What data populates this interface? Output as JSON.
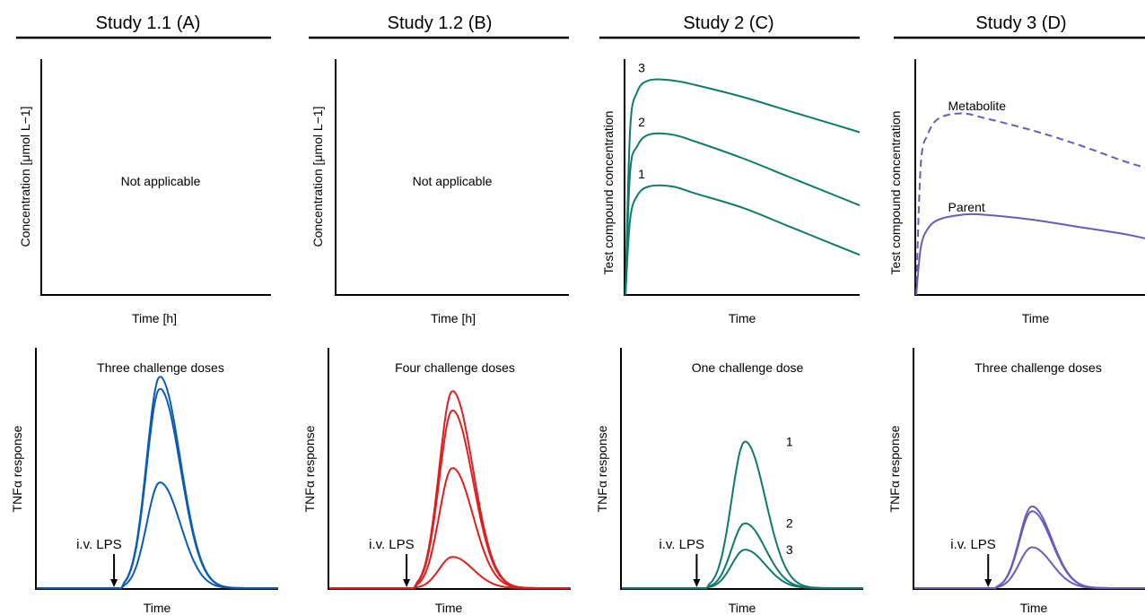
{
  "colors": {
    "study_a": "#0b5cb0",
    "study_b": "#de1f1f",
    "study_c": "#0f7a6a",
    "study_d": "#6b5bb8",
    "axis": "#000000"
  },
  "studies": [
    {
      "title": "Study 1.1 (A)"
    },
    {
      "title": "Study 1.2 (B)"
    },
    {
      "title": "Study 2 (C)"
    },
    {
      "title": "Study 3 (D)"
    }
  ],
  "chart_data": [
    {
      "type": "line",
      "panel": "A-top",
      "title": "Study 1.1 (A)",
      "xlabel": "Time [h]",
      "ylabel": "Concentration [μmol L−1]",
      "annotation": "Not applicable",
      "series": []
    },
    {
      "type": "line",
      "panel": "B-top",
      "title": "Study 1.2 (B)",
      "xlabel": "Time [h]",
      "ylabel": "Concentration [μmol L−1]",
      "annotation": "Not applicable",
      "series": []
    },
    {
      "type": "line",
      "panel": "C-top",
      "title": "Study 2 (C)",
      "xlabel": "Time",
      "ylabel": "Test compound concentration",
      "xlim": [
        0,
        1
      ],
      "ylim": [
        0,
        1
      ],
      "series": [
        {
          "name": "3",
          "x": [
            0,
            0.02,
            0.05,
            0.1,
            0.2,
            0.3,
            0.5,
            0.7,
            0.9,
            1.0
          ],
          "y": [
            0,
            0.7,
            0.86,
            0.91,
            0.91,
            0.89,
            0.84,
            0.78,
            0.72,
            0.69
          ]
        },
        {
          "name": "2",
          "x": [
            0,
            0.02,
            0.05,
            0.1,
            0.2,
            0.3,
            0.5,
            0.7,
            0.9,
            1.0
          ],
          "y": [
            0,
            0.52,
            0.63,
            0.68,
            0.68,
            0.65,
            0.58,
            0.5,
            0.42,
            0.38
          ]
        },
        {
          "name": "1",
          "x": [
            0,
            0.02,
            0.05,
            0.1,
            0.2,
            0.3,
            0.5,
            0.7,
            0.9,
            1.0
          ],
          "y": [
            0,
            0.32,
            0.42,
            0.46,
            0.46,
            0.43,
            0.37,
            0.29,
            0.21,
            0.17
          ]
        }
      ]
    },
    {
      "type": "line",
      "panel": "D-top",
      "title": "Study 3 (D)",
      "xlabel": "Time",
      "ylabel": "Test compound concentration",
      "xlim": [
        0,
        1
      ],
      "ylim": [
        0,
        1
      ],
      "series": [
        {
          "name": "Metabolite",
          "dashed": true,
          "x": [
            0,
            0.02,
            0.05,
            0.1,
            0.2,
            0.3,
            0.5,
            0.7,
            0.9,
            1.0
          ],
          "y": [
            0,
            0.55,
            0.68,
            0.75,
            0.77,
            0.75,
            0.7,
            0.64,
            0.57,
            0.54
          ]
        },
        {
          "name": "Parent",
          "dashed": false,
          "x": [
            0,
            0.02,
            0.05,
            0.1,
            0.2,
            0.3,
            0.5,
            0.7,
            0.9,
            1.0
          ],
          "y": [
            0,
            0.2,
            0.28,
            0.32,
            0.34,
            0.34,
            0.32,
            0.29,
            0.26,
            0.24
          ]
        }
      ]
    },
    {
      "type": "line",
      "panel": "A-bottom",
      "xlabel": "Time",
      "ylabel": "TNFα response",
      "annotation": "Three challenge doses",
      "lps_label": "i.v. LPS",
      "lps_time": 0.32,
      "peak_time": 0.51,
      "peaks": [
        0.88,
        0.83,
        0.44
      ],
      "xlim": [
        0,
        1
      ],
      "ylim": [
        0,
        1
      ]
    },
    {
      "type": "line",
      "panel": "B-bottom",
      "xlabel": "Time",
      "ylabel": "TNFα response",
      "annotation": "Four challenge doses",
      "lps_label": "i.v. LPS",
      "lps_time": 0.32,
      "peak_time": 0.51,
      "peaks": [
        0.82,
        0.74,
        0.5,
        0.13
      ],
      "xlim": [
        0,
        1
      ],
      "ylim": [
        0,
        1
      ]
    },
    {
      "type": "line",
      "panel": "C-bottom",
      "xlabel": "Time",
      "ylabel": "TNFα response",
      "annotation": "One challenge dose",
      "lps_label": "i.v. LPS",
      "lps_time": 0.31,
      "peak_time": 0.51,
      "peaks": [
        0.61,
        0.27,
        0.16
      ],
      "peak_labels": [
        "1",
        "2",
        "3"
      ],
      "xlim": [
        0,
        1
      ],
      "ylim": [
        0,
        1
      ]
    },
    {
      "type": "line",
      "panel": "D-bottom",
      "xlabel": "Time",
      "ylabel": "TNFα response",
      "annotation": "Three challenge doses",
      "lps_label": "i.v. LPS",
      "lps_time": 0.32,
      "peak_time": 0.51,
      "peaks": [
        0.34,
        0.32,
        0.17
      ],
      "xlim": [
        0,
        1
      ],
      "ylim": [
        0,
        1
      ]
    }
  ]
}
